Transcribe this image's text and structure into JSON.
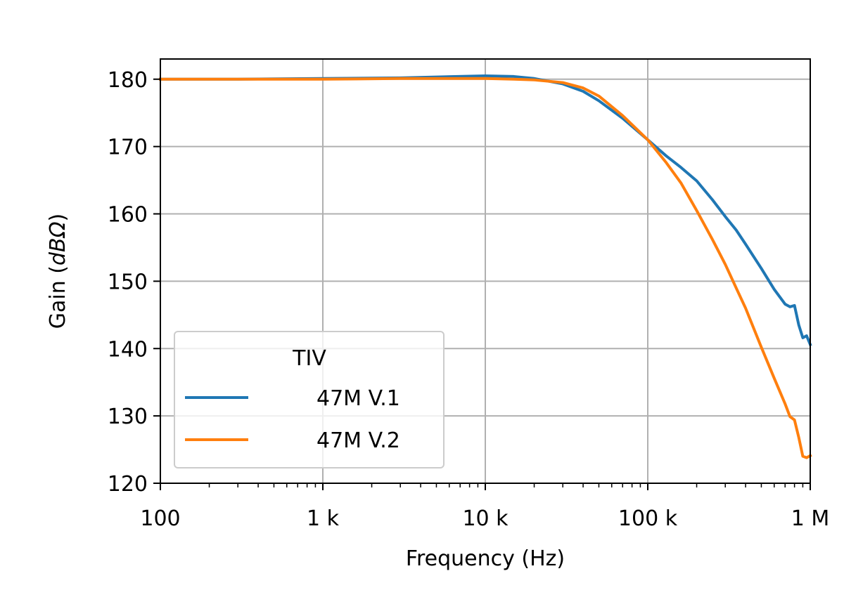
{
  "chart_data": {
    "type": "line",
    "xlabel": "Frequency (Hz)",
    "ylabel_main": "Gain (",
    "ylabel_units": "dBΩ",
    "ylabel_close": ")",
    "x_scale": "log",
    "xlim": [
      100,
      1000000
    ],
    "ylim": [
      120,
      183
    ],
    "x_ticks": [
      100,
      1000,
      10000,
      100000,
      1000000
    ],
    "x_tick_labels": [
      "100",
      "1 k",
      "10 k",
      "100 k",
      "1 M"
    ],
    "y_ticks": [
      120,
      130,
      140,
      150,
      160,
      170,
      180
    ],
    "y_tick_labels": [
      "120",
      "130",
      "140",
      "150",
      "160",
      "170",
      "180"
    ],
    "grid": true,
    "legend": {
      "title": "TIV",
      "position": "lower-left"
    },
    "series": [
      {
        "name": "47M V.1",
        "color": "#1f77b4",
        "x": [
          100,
          300,
          1000,
          3000,
          10000,
          15000,
          20000,
          30000,
          40000,
          50000,
          70000,
          100000,
          130000,
          160000,
          200000,
          250000,
          300000,
          350000,
          400000,
          500000,
          600000,
          700000,
          750000,
          800000,
          850000,
          900000,
          950000,
          1000000
        ],
        "y": [
          180,
          180,
          180.1,
          180.2,
          180.5,
          180.4,
          180.1,
          179.3,
          178.2,
          176.8,
          174.2,
          171.0,
          168.6,
          166.9,
          164.9,
          162.1,
          159.6,
          157.6,
          155.5,
          151.9,
          148.8,
          146.6,
          146.2,
          146.4,
          143.5,
          141.6,
          141.9,
          140.6
        ]
      },
      {
        "name": "47M V.2",
        "color": "#ff7f0e",
        "x": [
          100,
          300,
          1000,
          3000,
          10000,
          15000,
          20000,
          30000,
          40000,
          50000,
          70000,
          100000,
          130000,
          160000,
          200000,
          250000,
          300000,
          350000,
          400000,
          500000,
          600000,
          700000,
          750000,
          800000,
          850000,
          900000,
          950000,
          1000000
        ],
        "y": [
          180,
          180,
          180,
          180.1,
          180.1,
          180.0,
          179.9,
          179.5,
          178.7,
          177.5,
          174.6,
          171.0,
          167.6,
          164.6,
          160.5,
          156.2,
          152.5,
          149.0,
          146.0,
          140.2,
          135.6,
          131.8,
          129.9,
          129.4,
          126.8,
          124.0,
          123.8,
          124.1
        ]
      }
    ]
  }
}
